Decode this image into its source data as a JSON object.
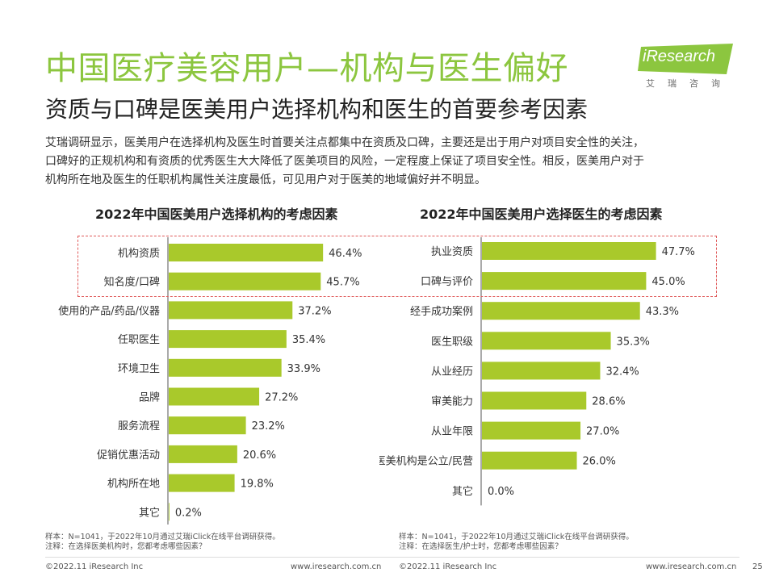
{
  "header": {
    "title": "中国医疗美容用户—机构与医生偏好",
    "subtitle": "资质与口碑是医美用户选择机构和医生的首要参考因素",
    "logo": "iResearch",
    "logo_sub": "艾瑞咨询"
  },
  "description": [
    "艾瑞调研显示，医美用户在选择机构及医生时首要关注点都集中在资质及口碑，主要还是出于用户对项目安全性的关注，",
    "口碑好的正规机构和有资质的优秀医生大大降低了医美项目的风险，一定程度上保证了项目安全性。相反，医美用户对于",
    "机构所在地及医生的任职机构属性关注度最低，可见用户对于医美的地域偏好并不明显。"
  ],
  "colors": {
    "brand_green": "#8cc63f",
    "bar": "#a9c92b",
    "highlight": "#e05a5a"
  },
  "chart_data": [
    {
      "type": "bar",
      "orientation": "horizontal",
      "title": "2022年中国医美用户选择机构的考虑因素",
      "categories": [
        "机构资质",
        "知名度/口碑",
        "使用的产品/药品/仪器",
        "任职医生",
        "环境卫生",
        "品牌",
        "服务流程",
        "促销优惠活动",
        "机构所在地",
        "其它"
      ],
      "values": [
        46.4,
        45.7,
        37.2,
        35.4,
        33.9,
        27.2,
        23.2,
        20.6,
        19.8,
        0.2
      ],
      "labels": [
        "46.4%",
        "45.7%",
        "37.2%",
        "35.4%",
        "33.9%",
        "27.2%",
        "23.2%",
        "20.6%",
        "19.8%",
        "0.2%"
      ],
      "xlim": [
        0,
        50
      ],
      "highlighted": [
        "机构资质",
        "知名度/口碑"
      ]
    },
    {
      "type": "bar",
      "orientation": "horizontal",
      "title": "2022年中国医美用户选择医生的考虑因素",
      "categories": [
        "执业资质",
        "口碑与评价",
        "经手成功案例",
        "医生职级",
        "从业经历",
        "审美能力",
        "从业年限",
        "任职的医美机构是公立/民营",
        "其它"
      ],
      "values": [
        47.7,
        45.0,
        43.3,
        35.3,
        32.4,
        28.6,
        27.0,
        26.0,
        0.0
      ],
      "labels": [
        "47.7%",
        "45.0%",
        "43.3%",
        "35.3%",
        "32.4%",
        "28.6%",
        "27.0%",
        "26.0%",
        "0.0%"
      ],
      "xlim": [
        0,
        50
      ],
      "highlighted": [
        "执业资质",
        "口碑与评价"
      ]
    }
  ],
  "notes": {
    "left": [
      "样本：N=1041，于2022年10月通过艾瑞iClick在线平台调研获得。",
      "注释：在选择医美机构时，您都考虑哪些因素？"
    ],
    "right": [
      "样本：N=1041，于2022年10月通过艾瑞iClick在线平台调研获得。",
      "注释：在选择医生/护士时，您都考虑哪些因素？"
    ]
  },
  "footer": {
    "left_copyright": "©2022.11 iResearch Inc",
    "left_url": "www.iresearch.com.cn",
    "right_copyright": "©2022.11 iResearch Inc",
    "right_url": "www.iresearch.com.cn",
    "page": "25"
  }
}
